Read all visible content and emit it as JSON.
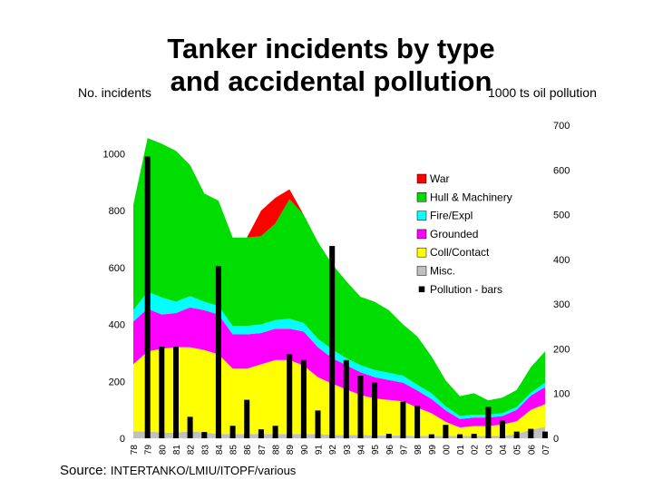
{
  "chart_data": {
    "type": "area",
    "title_lines": [
      "Tanker incidents by type",
      "and accidental pollution"
    ],
    "ylabel_left": "No. incidents",
    "ylabel_right": "1000 ts oil pollution",
    "source_prefix": "Source:",
    "source_rest": "INTERTANKO/LMIU/ITOPF/various",
    "categories": [
      "78",
      "79",
      "80",
      "81",
      "82",
      "83",
      "84",
      "85",
      "86",
      "87",
      "88",
      "89",
      "90",
      "91",
      "92",
      "93",
      "94",
      "95",
      "96",
      "97",
      "98",
      "99",
      "00",
      "01",
      "02",
      "03",
      "04",
      "05",
      "06",
      "07"
    ],
    "ylim_left": [
      0,
      1100
    ],
    "ylim_right": [
      0,
      700
    ],
    "yticks_left": [
      0,
      200,
      400,
      600,
      800,
      1000
    ],
    "yticks_right": [
      0,
      100,
      200,
      300,
      400,
      500,
      600,
      700
    ],
    "series": [
      {
        "name": "Misc.",
        "color": "#c0c0c0",
        "values": [
          25,
          25,
          20,
          20,
          25,
          20,
          15,
          15,
          15,
          15,
          15,
          15,
          15,
          15,
          12,
          12,
          12,
          10,
          10,
          10,
          8,
          8,
          8,
          8,
          8,
          8,
          8,
          15,
          30,
          40
        ]
      },
      {
        "name": "Coll/Contact",
        "color": "#ffff00",
        "values": [
          235,
          280,
          295,
          300,
          295,
          290,
          280,
          230,
          230,
          245,
          260,
          260,
          240,
          200,
          180,
          160,
          140,
          130,
          125,
          120,
          100,
          80,
          50,
          30,
          35,
          35,
          40,
          45,
          70,
          80
        ]
      },
      {
        "name": "Grounded",
        "color": "#ff00ff",
        "values": [
          150,
          150,
          120,
          120,
          140,
          140,
          140,
          120,
          120,
          110,
          110,
          110,
          120,
          105,
          90,
          85,
          80,
          75,
          70,
          65,
          60,
          50,
          40,
          30,
          30,
          30,
          30,
          40,
          50,
          60
        ]
      },
      {
        "name": "Fire/Expl",
        "color": "#00ffff",
        "values": [
          40,
          60,
          60,
          40,
          40,
          30,
          30,
          30,
          30,
          30,
          30,
          35,
          30,
          30,
          30,
          25,
          25,
          25,
          25,
          25,
          20,
          20,
          15,
          10,
          10,
          10,
          10,
          10,
          10,
          15
        ]
      },
      {
        "name": "Hull & Machinery",
        "color": "#00dd00",
        "values": [
          370,
          540,
          540,
          530,
          460,
          380,
          370,
          310,
          310,
          310,
          340,
          420,
          380,
          340,
          300,
          270,
          240,
          240,
          220,
          180,
          170,
          130,
          90,
          70,
          75,
          50,
          55,
          60,
          90,
          110
        ]
      },
      {
        "name": "War",
        "color": "#ff0000",
        "values": [
          0,
          0,
          0,
          0,
          0,
          0,
          0,
          0,
          0,
          90,
          90,
          35,
          0,
          0,
          0,
          0,
          0,
          0,
          0,
          0,
          0,
          0,
          0,
          0,
          0,
          0,
          0,
          0,
          0,
          0
        ]
      }
    ],
    "bars": {
      "name": "Pollution - bars",
      "color": "#000000",
      "values": [
        0,
        630,
        205,
        205,
        48,
        14,
        385,
        28,
        86,
        20,
        28,
        188,
        175,
        62,
        430,
        175,
        140,
        125,
        10,
        82,
        73,
        9,
        30,
        9,
        10,
        70,
        40,
        15,
        21,
        15
      ]
    },
    "legend_order": [
      "War",
      "Hull & Machinery",
      "Fire/Expl",
      "Grounded",
      "Coll/Contact",
      "Misc.",
      "Pollution - bars"
    ],
    "legend_position": "right-center",
    "grid": false
  }
}
